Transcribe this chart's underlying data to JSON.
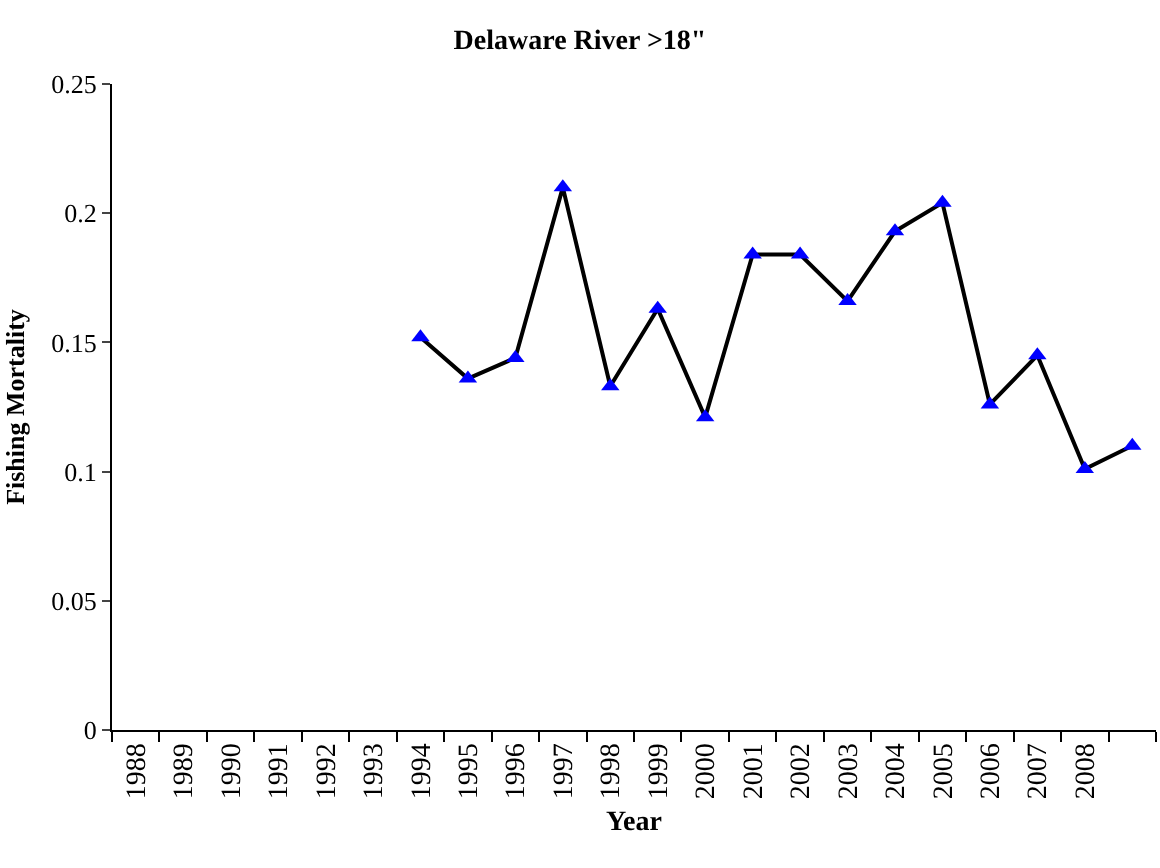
{
  "chart_data": {
    "type": "line",
    "title": "Delaware River >18\"",
    "xlabel": "Year",
    "ylabel": "Fishing Mortality",
    "categories": [
      "1988",
      "1989",
      "1990",
      "1991",
      "1992",
      "1993",
      "1994",
      "1995",
      "1996",
      "1997",
      "1998",
      "1999",
      "2000",
      "2001",
      "2002",
      "2003",
      "2004",
      "2005",
      "2006",
      "2007",
      "2008",
      null
    ],
    "series": [
      {
        "color": "#000000",
        "colors": [
          "#0000ff",
          "#0000ff",
          "#0000ff",
          "#0000ff",
          "#0000ff",
          "#0000ff",
          "#0000ff",
          "#0000ff",
          "#0000ff",
          "#0000ff",
          "#0000ff",
          "#0000ff",
          "#0000ff",
          "#0000ff",
          "#0000ff",
          "#0000ff",
          "#0000ff",
          "#0000ff",
          "#0000ff",
          "#0000ff",
          "#0000ff",
          "#0000ff"
        ],
        "values": [
          null,
          null,
          null,
          null,
          null,
          null,
          0.152,
          0.136,
          0.144,
          0.21,
          0.133,
          0.163,
          0.121,
          0.184,
          0.184,
          0.166,
          0.193,
          0.204,
          0.126,
          0.145,
          0.101,
          0.11
        ]
      }
    ],
    "ylim": [
      0,
      0.25
    ],
    "yticks": [
      0,
      0.05,
      0.1,
      0.15,
      0.2,
      0.25
    ],
    "marker": "triangle",
    "line_style": "solid"
  }
}
